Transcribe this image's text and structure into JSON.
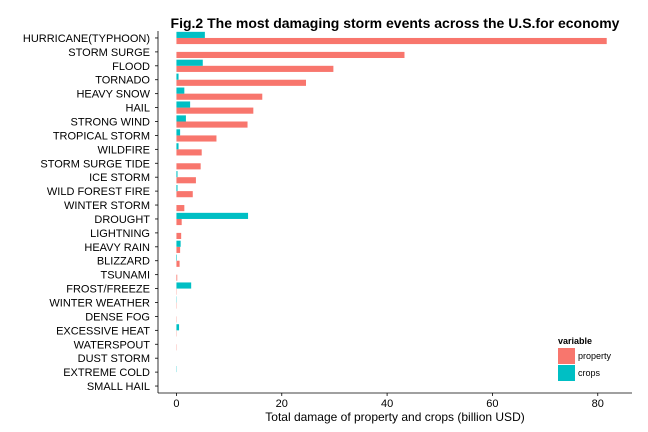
{
  "chart_data": {
    "type": "bar",
    "orientation": "horizontal",
    "title": "Fig.2 The most damaging storm events across the U.S.for economy",
    "xlabel": "Total damage of property and crops (billion USD)",
    "ylabel": "",
    "xlim": [
      -3.5,
      86.5
    ],
    "xticks": [
      0,
      20,
      40,
      60,
      80
    ],
    "categories": [
      "HURRICANE(TYPHOON)",
      "STORM SURGE",
      "FLOOD",
      "TORNADO",
      "HEAVY SNOW",
      "HAIL",
      "STRONG WIND",
      "TROPICAL STORM",
      "WILDFIRE",
      "STORM SURGE TIDE",
      "ICE STORM",
      "WILD FOREST FIRE",
      "WINTER STORM",
      "DROUGHT",
      "LIGHTNING",
      "HEAVY RAIN",
      "BLIZZARD",
      "TSUNAMI",
      "FROST/FREEZE",
      "WINTER WEATHER",
      "DENSE FOG",
      "EXCESSIVE HEAT",
      "WATERSPOUT",
      "DUST STORM",
      "EXTREME COLD",
      "SMALL HAIL"
    ],
    "series": [
      {
        "name": "property",
        "color": "#F8766D",
        "values": [
          81.7,
          43.3,
          29.8,
          24.6,
          16.3,
          14.6,
          13.5,
          7.6,
          4.8,
          4.6,
          3.7,
          3.1,
          1.5,
          1.0,
          0.9,
          0.7,
          0.6,
          0.15,
          0.05,
          0.05,
          0.05,
          0.05,
          0.05,
          0.0,
          0.0,
          0.0
        ]
      },
      {
        "name": "crops",
        "color": "#00BFC4",
        "values": [
          5.4,
          0.0,
          5.0,
          0.4,
          1.5,
          2.6,
          1.8,
          0.7,
          0.4,
          0.0,
          0.2,
          0.2,
          0.0,
          13.6,
          0.0,
          0.8,
          0.1,
          0.0,
          2.8,
          0.05,
          0.0,
          0.5,
          0.0,
          0.0,
          0.05,
          0.0
        ]
      }
    ],
    "legend": {
      "title": "variable",
      "position": "bottom-right"
    },
    "grid": false
  }
}
